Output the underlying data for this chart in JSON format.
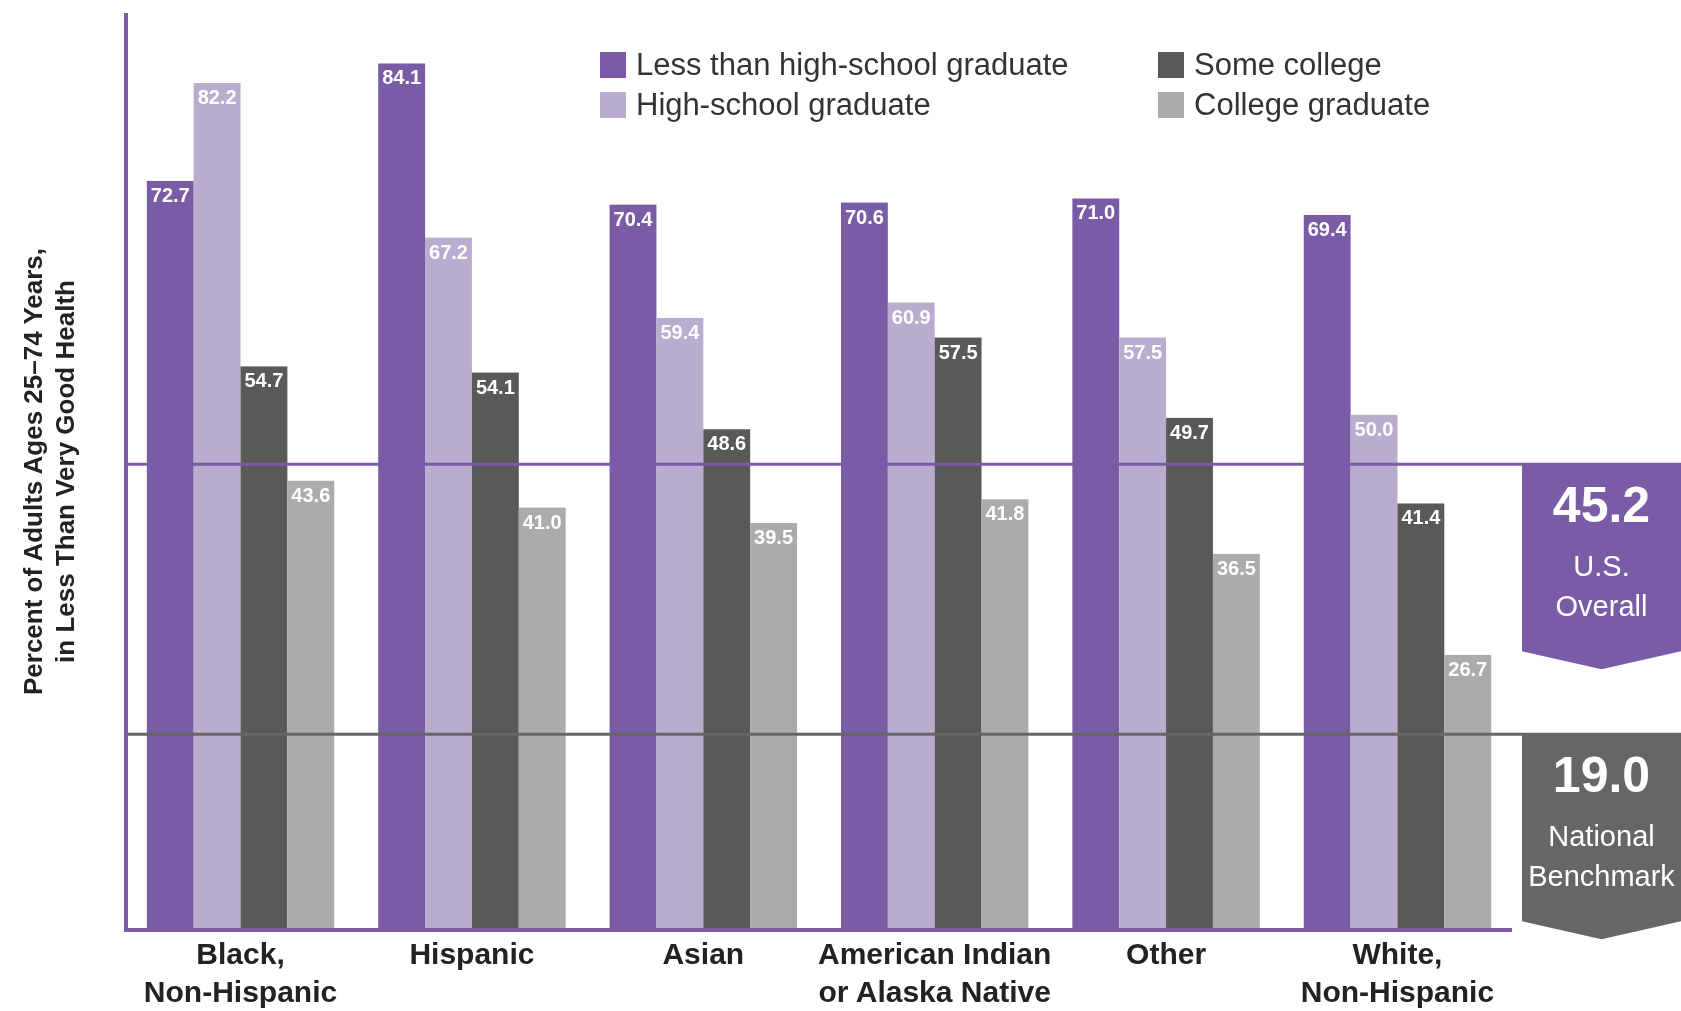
{
  "chart_data": {
    "type": "bar",
    "ylabel": "Percent of Adults Ages 25–74 Years,\nin Less Than Very Good Health",
    "categories": [
      "Black,\nNon-Hispanic",
      "Hispanic",
      "Asian",
      "American Indian\nor Alaska Native",
      "Other",
      "White,\nNon-Hispanic"
    ],
    "series": [
      {
        "name": "Less than high-school graduate",
        "color": "#7a5ca6",
        "values": [
          72.7,
          84.1,
          70.4,
          70.6,
          71.0,
          69.4
        ],
        "value_labels": [
          "72.7",
          "84.1",
          "70.4",
          "70.6",
          "71.0",
          "69.4"
        ]
      },
      {
        "name": "High-school graduate",
        "color": "#b9adcf",
        "values": [
          82.2,
          67.2,
          59.4,
          60.9,
          57.5,
          50.0
        ],
        "value_labels": [
          "82.2",
          "67.2",
          "59.4",
          "60.9",
          "57.5",
          "50.0"
        ]
      },
      {
        "name": "Some college",
        "color": "#595959",
        "values": [
          54.7,
          54.1,
          48.6,
          57.5,
          49.7,
          41.4
        ],
        "value_labels": [
          "54.7",
          "54.1",
          "48.6",
          "57.5",
          "49.7",
          "41.4"
        ]
      },
      {
        "name": "College graduate",
        "color": "#ababab",
        "values": [
          43.6,
          41.0,
          39.5,
          41.8,
          36.5,
          26.7
        ],
        "value_labels": [
          "43.6",
          "41.0",
          "39.5",
          "41.8",
          "36.5",
          "26.7"
        ]
      }
    ],
    "ylim": [
      0,
      89
    ],
    "tick_labels": "x",
    "legend": "top right",
    "ref_lines": [
      {
        "axis": "y",
        "value": 45.2,
        "label": "45.2\nU.S.\nOverall",
        "color": "#7a5ca6"
      },
      {
        "axis": "y",
        "value": 19.0,
        "label": "19.0\nNational\nBenchmark",
        "color": "#666666"
      }
    ]
  }
}
